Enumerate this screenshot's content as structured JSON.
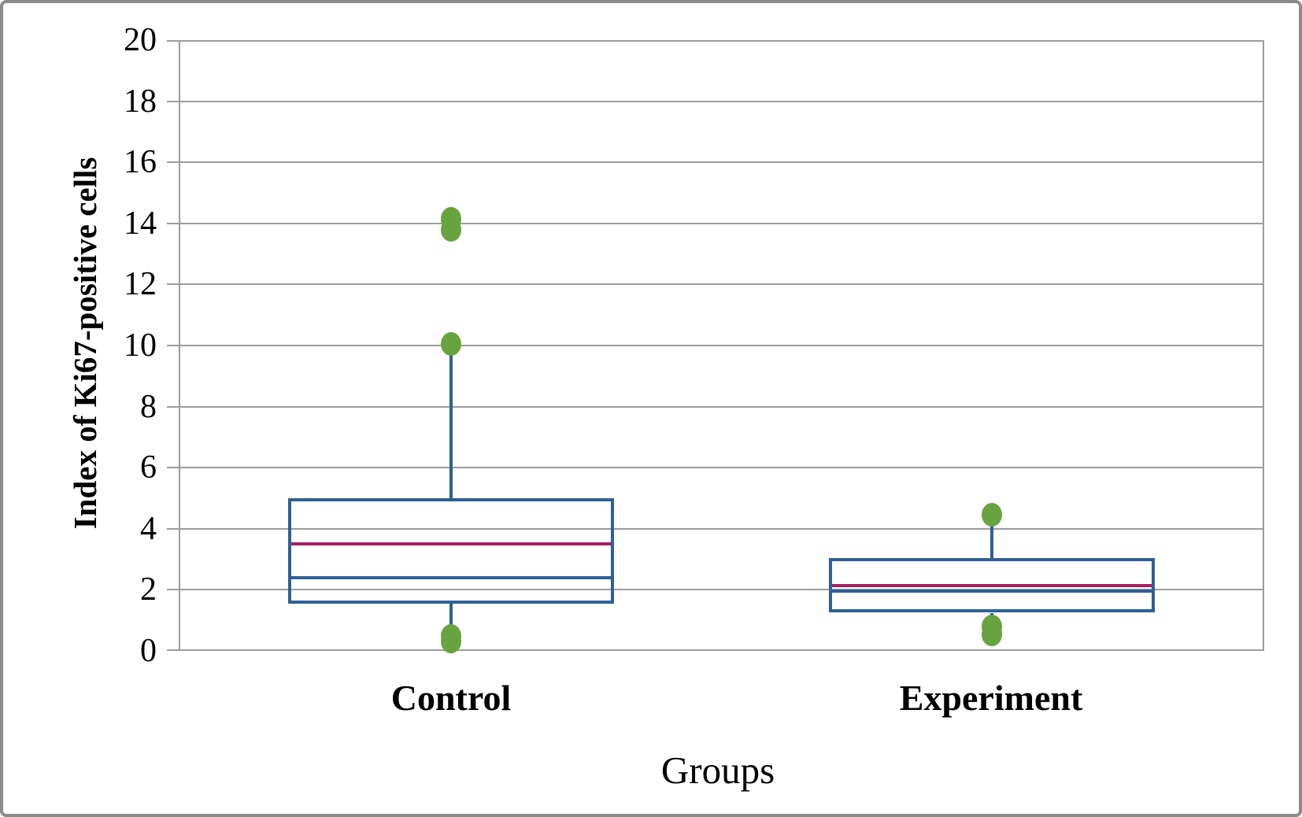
{
  "figure": {
    "background": "#ffffff",
    "border_color": "#8c8c8c"
  },
  "chart_data": {
    "type": "box",
    "title": "",
    "xlabel": "Groups",
    "ylabel": "Index of Ki67-positive cells",
    "ylim": [
      0,
      20
    ],
    "ytick_step": 2,
    "yticks": [
      0,
      2,
      4,
      6,
      8,
      10,
      12,
      14,
      16,
      18,
      20
    ],
    "grid": "horizontal gridlines on",
    "legend": "none",
    "categories": [
      "Control",
      "Experiment"
    ],
    "series": [
      {
        "name": "Control",
        "q1": 1.55,
        "median": 2.4,
        "mean": 3.5,
        "q3": 5.0,
        "whisker_low": 0.5,
        "whisker_high": 10.0,
        "outliers": [
          14.15,
          13.8,
          10.05,
          0.5,
          0.3
        ]
      },
      {
        "name": "Experiment",
        "q1": 1.25,
        "median": 1.95,
        "mean": 2.15,
        "q3": 3.05,
        "whisker_low": 0.8,
        "whisker_high": 4.1,
        "outliers": [
          4.45,
          0.8,
          0.55
        ]
      }
    ],
    "colors": {
      "box_border": "#2e6095",
      "median_line": "#2e6095",
      "mean_line": "#a81f5f",
      "points": "#67a33e",
      "grid": "#9c9c9c",
      "text": "#000000"
    }
  }
}
